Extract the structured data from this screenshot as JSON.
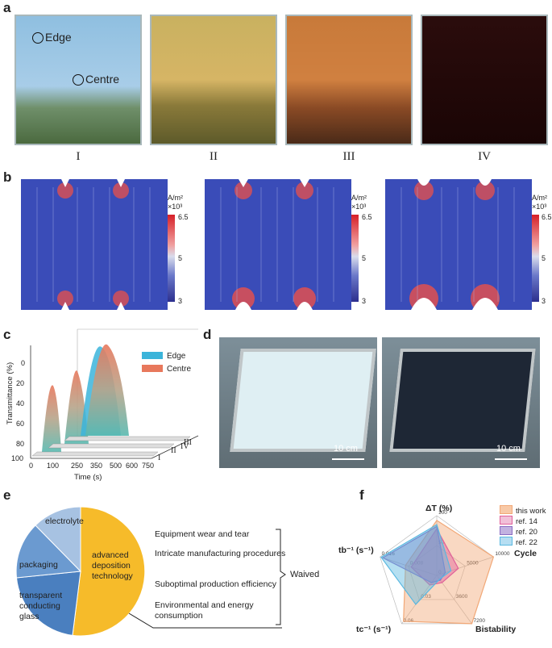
{
  "panels": {
    "a": "a",
    "b": "b",
    "c": "c",
    "d": "d",
    "e": "e",
    "f": "f"
  },
  "panel_a": {
    "labels": [
      "Edge",
      "Centre"
    ],
    "stages": [
      "I",
      "II",
      "III",
      "IV"
    ],
    "tints": [
      "#8fb8d8",
      "#c9a955",
      "#c07a3c",
      "#2a0a0a"
    ]
  },
  "panel_b": {
    "unit_line1": "A/m²",
    "unit_line2": "×10³",
    "max": "6.5",
    "mid": "5",
    "min": "3"
  },
  "panel_d": {
    "scale_left": "10 cm",
    "scale_right": "10 cm"
  },
  "panel_e": {
    "slices": [
      "electrolyte",
      "packaging",
      "transparent conducting glass",
      "advanced deposition technology"
    ],
    "items": [
      "Equipment wear and tear",
      "Intricate manufacturing procedures",
      "Suboptimal production efficiency",
      "Environmental and energy consumption"
    ],
    "brace_label": "Waived"
  },
  "chart_data": [
    {
      "type": "area",
      "ylabel": "Transmittance (%)",
      "xlabel": "Time (s)",
      "x_ticks": [
        "0",
        "250",
        "500",
        "750"
      ],
      "x_ticks_full": [
        "0",
        "100",
        "250",
        "350",
        "500",
        "600",
        "750"
      ],
      "y_ticks": [
        "0",
        "20",
        "40",
        "60",
        "80",
        "100"
      ],
      "depth_ticks": [
        "I",
        "II",
        "III",
        "IV"
      ],
      "series": [
        {
          "name": "Edge",
          "color": "#3bb4da"
        },
        {
          "name": "Centre",
          "color": "#e8785c"
        }
      ]
    },
    {
      "type": "radar",
      "axes": [
        {
          "label": "ΔT (%)",
          "ticks": [
            "0",
            "50",
            "100"
          ]
        },
        {
          "label": "Cycle",
          "ticks": [
            "5000",
            "10000"
          ]
        },
        {
          "label": "Bistability",
          "ticks": [
            "3600",
            "7200"
          ]
        },
        {
          "label": "tc⁻¹ (s⁻¹)",
          "ticks": [
            "0.03",
            "0.06"
          ]
        },
        {
          "label": "tb⁻¹ (s⁻¹)",
          "ticks": [
            "0.008",
            "0.016"
          ]
        }
      ],
      "series": [
        {
          "name": "this work",
          "color": "#f2a877",
          "values": [
            0.92,
            1.0,
            1.0,
            0.95,
            0.55
          ]
        },
        {
          "name": "ref. 14",
          "color": "#e0609a",
          "values": [
            0.78,
            0.38,
            0.15,
            0.2,
            0.45
          ]
        },
        {
          "name": "ref. 20",
          "color": "#8a6cc2",
          "values": [
            0.82,
            0.15,
            0.1,
            0.15,
            0.95
          ]
        },
        {
          "name": "ref. 22",
          "color": "#5ab8e0",
          "values": [
            0.85,
            0.25,
            0.08,
            0.6,
            0.98
          ]
        }
      ]
    }
  ]
}
